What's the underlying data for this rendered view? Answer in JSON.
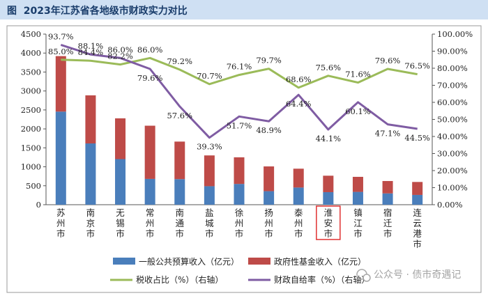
{
  "header": {
    "figure_label": "图",
    "title": "2023年江苏省各地级市财政实力对比"
  },
  "watermark": "公众号 · 债市奇遇记",
  "colors": {
    "general_budget": "#4a7ebb",
    "fund_revenue": "#be4b48",
    "tax_ratio": "#9bbb59",
    "self_sufficiency": "#7f5ca3",
    "highlight_box": "#e03030"
  },
  "chart_data": {
    "type": "bar",
    "title": "2023年江苏省各地级市财政实力对比",
    "categories": [
      "苏州市",
      "南京市",
      "无锡市",
      "常州市",
      "南通市",
      "盐城市",
      "徐州市",
      "扬州市",
      "泰州市",
      "淮安市",
      "镇江市",
      "宿迁市",
      "连云港市"
    ],
    "highlight_category": "淮安市",
    "y_left": {
      "min": 0,
      "max": 4500,
      "step": 500,
      "ticks": [
        "0",
        "500",
        "1000",
        "1500",
        "2000",
        "2500",
        "3000",
        "3500",
        "4000",
        "4500"
      ]
    },
    "y_right": {
      "min": 0,
      "max": 100,
      "step": 10,
      "ticks": [
        "0.00%",
        "10.00%",
        "20.00%",
        "30.00%",
        "40.00%",
        "50.00%",
        "60.00%",
        "70.00%",
        "80.00%",
        "90.00%",
        "100.00%"
      ]
    },
    "series": [
      {
        "name": "一般公共预算收入（亿元）",
        "type": "bar",
        "stack": "revenue",
        "axis": "left",
        "values": [
          2456,
          1616,
          1203,
          681,
          675,
          488,
          548,
          357,
          453,
          331,
          338,
          298,
          258
        ]
      },
      {
        "name": "政府性基金收入（亿元）",
        "type": "bar",
        "stack": "revenue",
        "axis": "left",
        "values": [
          1464,
          1269,
          1075,
          1403,
          990,
          812,
          702,
          653,
          497,
          434,
          397,
          327,
          342
        ]
      },
      {
        "name": "税收占比（%）（右轴）",
        "type": "line",
        "axis": "right",
        "values": [
          85.0,
          84.4,
          82.2,
          86.0,
          79.2,
          70.7,
          76.1,
          79.7,
          68.6,
          75.6,
          71.6,
          79.6,
          76.5
        ],
        "labels": [
          "85.0%",
          "84.4%",
          "82.2%",
          "86.0%",
          "79.2%",
          "70.7%",
          "76.1%",
          "79.7%",
          "68.6%",
          "75.6%",
          "71.6%",
          "79.6%",
          "76.5%"
        ]
      },
      {
        "name": "财政自给率（%）（右轴）",
        "type": "line",
        "axis": "right",
        "values": [
          93.7,
          88.1,
          86.0,
          79.6,
          57.6,
          39.3,
          51.7,
          48.9,
          64.4,
          44.1,
          60.1,
          47.1,
          44.5
        ],
        "labels": [
          "93.7%",
          "88.1%",
          "86.0%",
          "79.6%",
          "57.6%",
          "39.3%",
          "51.7%",
          "48.9%",
          "64.4%",
          "44.1%",
          "60.1%",
          "47.1%",
          "44.5%"
        ]
      }
    ],
    "legend": [
      "一般公共预算收入（亿元）",
      "政府性基金收入（亿元）",
      "税收占比（%）（右轴）",
      "财政自给率（%）（右轴）"
    ]
  }
}
